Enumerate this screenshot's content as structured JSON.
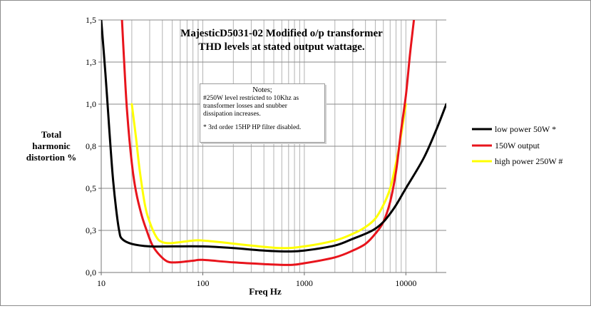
{
  "chart_data": {
    "type": "line",
    "title_lines": [
      "MajesticD5031-02 Modified o/p transformer",
      "THD levels at stated output wattage."
    ],
    "xlabel": "Freq Hz",
    "ylabel_lines": [
      "Total",
      "harmonic",
      "distortion %"
    ],
    "x_scale": "log",
    "xlim": [
      10,
      25000
    ],
    "ylim": [
      0,
      1.5
    ],
    "x_ticks": [
      {
        "value": 10,
        "label": "10"
      },
      {
        "value": 100,
        "label": "100"
      },
      {
        "value": 1000,
        "label": "1000"
      },
      {
        "value": 10000,
        "label": "10000"
      }
    ],
    "y_ticks": [
      {
        "value": 0,
        "label": "0,0"
      },
      {
        "value": 0.25,
        "label": "0,3"
      },
      {
        "value": 0.5,
        "label": "0,5"
      },
      {
        "value": 0.75,
        "label": "0,8"
      },
      {
        "value": 1.0,
        "label": "1,0"
      },
      {
        "value": 1.25,
        "label": "1,3"
      },
      {
        "value": 1.5,
        "label": "1,5"
      }
    ],
    "grid": true,
    "legend_position": "right",
    "series": [
      {
        "name": "low power 50W *",
        "color": "#000000",
        "points": [
          [
            10,
            1.5
          ],
          [
            11,
            1.18
          ],
          [
            12,
            0.85
          ],
          [
            13,
            0.57
          ],
          [
            14,
            0.38
          ],
          [
            15,
            0.25
          ],
          [
            16,
            0.2
          ],
          [
            20,
            0.17
          ],
          [
            30,
            0.155
          ],
          [
            50,
            0.155
          ],
          [
            100,
            0.155
          ],
          [
            200,
            0.145
          ],
          [
            400,
            0.13
          ],
          [
            700,
            0.125
          ],
          [
            1000,
            0.13
          ],
          [
            2000,
            0.16
          ],
          [
            3000,
            0.2
          ],
          [
            4000,
            0.23
          ],
          [
            5000,
            0.26
          ],
          [
            6000,
            0.3
          ],
          [
            7000,
            0.35
          ],
          [
            8000,
            0.4
          ],
          [
            10000,
            0.5
          ],
          [
            15000,
            0.68
          ],
          [
            20000,
            0.85
          ],
          [
            25000,
            1.0
          ]
        ]
      },
      {
        "name": "150W output",
        "color": "#e8141c",
        "points": [
          [
            16,
            1.5
          ],
          [
            17,
            1.2
          ],
          [
            18,
            0.95
          ],
          [
            20,
            0.65
          ],
          [
            22,
            0.48
          ],
          [
            25,
            0.34
          ],
          [
            28,
            0.25
          ],
          [
            32,
            0.16
          ],
          [
            38,
            0.1
          ],
          [
            45,
            0.065
          ],
          [
            55,
            0.06
          ],
          [
            80,
            0.07
          ],
          [
            100,
            0.075
          ],
          [
            200,
            0.06
          ],
          [
            400,
            0.05
          ],
          [
            700,
            0.045
          ],
          [
            1000,
            0.055
          ],
          [
            2000,
            0.09
          ],
          [
            3000,
            0.13
          ],
          [
            4000,
            0.17
          ],
          [
            5000,
            0.23
          ],
          [
            6000,
            0.3
          ],
          [
            7000,
            0.42
          ],
          [
            8000,
            0.6
          ],
          [
            9000,
            0.85
          ],
          [
            10000,
            1.05
          ],
          [
            11000,
            1.3
          ],
          [
            12000,
            1.5
          ]
        ]
      },
      {
        "name": "high power 250W #",
        "color": "#ffff00",
        "points": [
          [
            20,
            1.0
          ],
          [
            22,
            0.8
          ],
          [
            24,
            0.6
          ],
          [
            27,
            0.4
          ],
          [
            30,
            0.3
          ],
          [
            35,
            0.21
          ],
          [
            40,
            0.18
          ],
          [
            50,
            0.175
          ],
          [
            80,
            0.19
          ],
          [
            100,
            0.19
          ],
          [
            150,
            0.18
          ],
          [
            300,
            0.16
          ],
          [
            600,
            0.145
          ],
          [
            1000,
            0.155
          ],
          [
            2000,
            0.19
          ],
          [
            3000,
            0.23
          ],
          [
            4000,
            0.27
          ],
          [
            5000,
            0.32
          ],
          [
            6000,
            0.4
          ],
          [
            7000,
            0.5
          ],
          [
            8000,
            0.65
          ],
          [
            9000,
            0.82
          ],
          [
            10000,
            1.0
          ]
        ]
      }
    ],
    "annotation": {
      "title": "Notes;",
      "lines": [
        "#250W level restricted to 10Khz as",
        "transformer losses and snubber",
        "dissipation increases.",
        "",
        "* 3rd order 15HP HP filter disabled."
      ]
    }
  }
}
